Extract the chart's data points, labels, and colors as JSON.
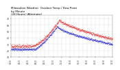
{
  "title": "Milwaukee Weather  Outdoor Temp / Dew Point\nby Minute\n(24 Hours) (Alternate)",
  "title_fontsize": 3.0,
  "background_color": "#ffffff",
  "grid_color": "#aaaaaa",
  "temp_color": "#dd0000",
  "dew_color": "#0000cc",
  "ylim": [
    10,
    75
  ],
  "yticks": [
    10,
    20,
    30,
    40,
    50,
    60,
    70
  ],
  "num_points": 1440,
  "marker_size": 0.6,
  "line_width": 0.0
}
